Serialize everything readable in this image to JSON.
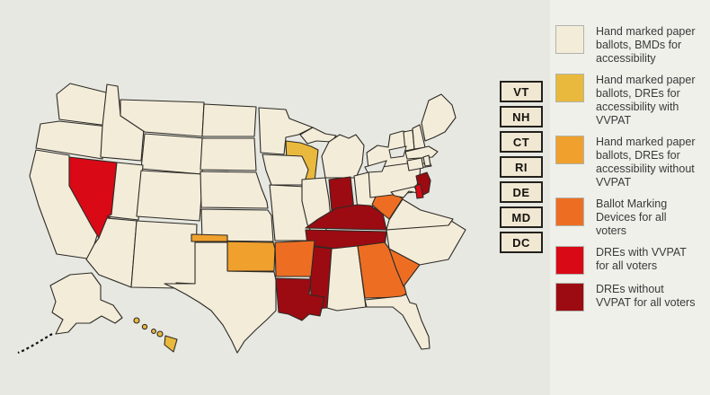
{
  "background": {
    "map_bg": "#e7e8e1",
    "panel_bg": "#eef0e9",
    "state_border": "#2d2a26"
  },
  "palette": {
    "hand_marked": "#f3ecd9",
    "dre_access_vvpat": "#e9b93d",
    "dre_access_no_vvpat": "#efa02d",
    "bmd_all": "#ed6e23",
    "dre_vvpat_all": "#d90916",
    "dre_no_vvpat_all": "#9c0b12"
  },
  "legend": {
    "items": [
      {
        "label": "Hand marked paper ballots, BMDs for accessibility",
        "category": "hand_marked"
      },
      {
        "label": "Hand marked paper ballots, DREs for accessibility with VVPAT",
        "category": "dre_access_vvpat"
      },
      {
        "label": "Hand marked paper ballots, DREs for accessibility without VVPAT",
        "category": "dre_access_no_vvpat"
      },
      {
        "label": "Ballot Marking Devices for all voters",
        "category": "bmd_all"
      },
      {
        "label": "DREs with VVPAT for all voters",
        "category": "dre_vvpat_all"
      },
      {
        "label": "DREs without VVPAT for all voters",
        "category": "dre_no_vvpat_all"
      }
    ]
  },
  "state_labels": [
    {
      "abbr": "VT"
    },
    {
      "abbr": "NH"
    },
    {
      "abbr": "CT"
    },
    {
      "abbr": "RI"
    },
    {
      "abbr": "DE"
    },
    {
      "abbr": "MD"
    },
    {
      "abbr": "DC"
    }
  ],
  "map": {
    "state_fills": {
      "WA": "hand_marked",
      "OR": "hand_marked",
      "CA": "hand_marked",
      "NV": "dre_vvpat_all",
      "ID": "hand_marked",
      "MT": "hand_marked",
      "WY": "hand_marked",
      "UT": "hand_marked",
      "CO": "hand_marked",
      "AZ": "hand_marked",
      "NM": "hand_marked",
      "ND": "hand_marked",
      "SD": "hand_marked",
      "NE": "hand_marked",
      "KS": "hand_marked",
      "OK": "dre_access_no_vvpat",
      "TX": "hand_marked",
      "MN": "hand_marked",
      "IA": "hand_marked",
      "MO": "hand_marked",
      "WI": "dre_access_vvpat",
      "IL": "hand_marked",
      "MIUP": "hand_marked",
      "MI": "hand_marked",
      "IN": "dre_no_vvpat_all",
      "OH": "hand_marked",
      "KY": "dre_no_vvpat_all",
      "TN": "dre_no_vvpat_all",
      "MS": "dre_no_vvpat_all",
      "AL": "hand_marked",
      "GA": "bmd_all",
      "SC": "bmd_all",
      "NC": "hand_marked",
      "VA": "hand_marked",
      "WV": "bmd_all",
      "PA": "hand_marked",
      "NY": "hand_marked",
      "LI": "hand_marked",
      "NJ": "dre_no_vvpat_all",
      "VT": "hand_marked",
      "NH": "hand_marked",
      "ME": "hand_marked",
      "MA": "hand_marked",
      "CT": "hand_marked",
      "RI": "hand_marked",
      "MD": "hand_marked",
      "DE": "dre_vvpat_all",
      "LA": "dre_no_vvpat_all",
      "AR": "bmd_all",
      "FL": "hand_marked",
      "AK": "hand_marked",
      "HI1": "dre_access_vvpat",
      "HI2": "dre_access_vvpat",
      "HI3": "dre_access_vvpat",
      "HI4": "dre_access_vvpat",
      "HI5": "dre_access_vvpat"
    }
  }
}
